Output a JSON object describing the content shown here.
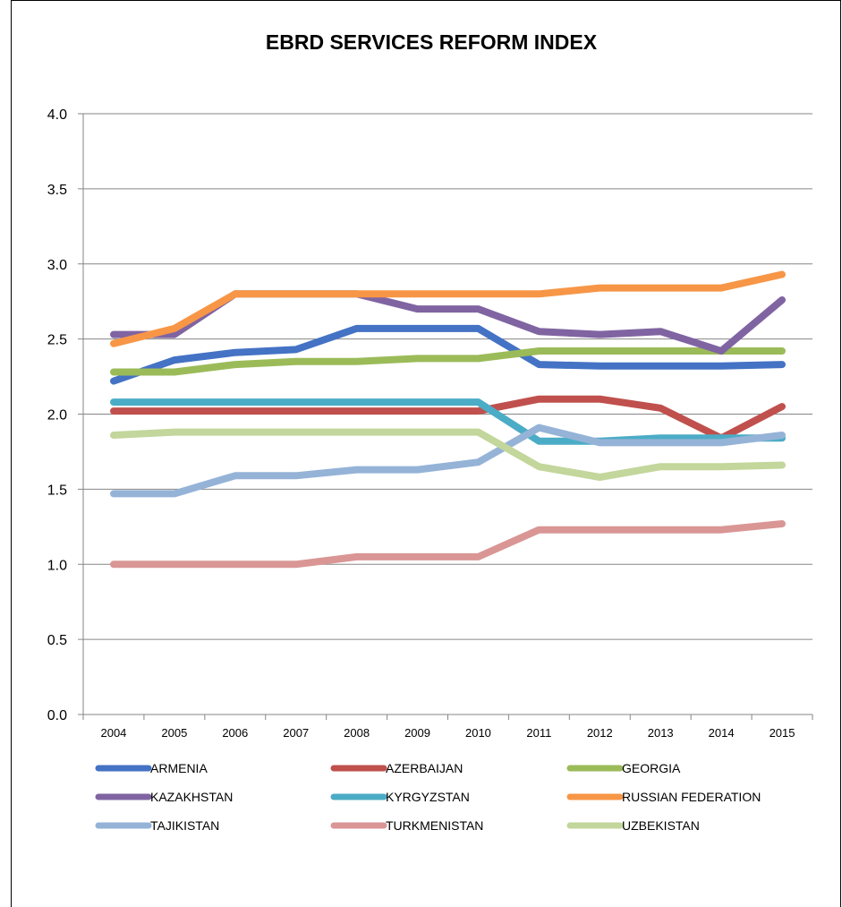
{
  "chart_data": {
    "type": "line",
    "title": "EBRD SERVICES REFORM INDEX",
    "xlabel": "",
    "ylabel": "",
    "ylim": [
      0,
      4
    ],
    "yticks": [
      "0.0",
      "0.5",
      "1.0",
      "1.5",
      "2.0",
      "2.5",
      "3.0",
      "3.5",
      "4.0"
    ],
    "x": [
      "2004",
      "2005",
      "2006",
      "2007",
      "2008",
      "2009",
      "2010",
      "2011",
      "2012",
      "2013",
      "2014",
      "2015"
    ],
    "grid": true,
    "legend_position": "bottom",
    "series": [
      {
        "name": "ARMENIA",
        "color": "#4472C4",
        "values": [
          2.22,
          2.36,
          2.41,
          2.43,
          2.57,
          2.57,
          2.57,
          2.33,
          2.32,
          2.32,
          2.32,
          2.33
        ]
      },
      {
        "name": "AZERBAIJAN",
        "color": "#C0504D",
        "values": [
          2.02,
          2.02,
          2.02,
          2.02,
          2.02,
          2.02,
          2.02,
          2.1,
          2.1,
          2.04,
          1.84,
          2.05
        ]
      },
      {
        "name": "GEORGIA",
        "color": "#9BBB59",
        "values": [
          2.28,
          2.28,
          2.33,
          2.35,
          2.35,
          2.37,
          2.37,
          2.42,
          2.42,
          2.42,
          2.42,
          2.42
        ]
      },
      {
        "name": "KAZAKHSTAN",
        "color": "#8064A2",
        "values": [
          2.53,
          2.53,
          2.8,
          2.8,
          2.8,
          2.7,
          2.7,
          2.55,
          2.53,
          2.55,
          2.42,
          2.76
        ]
      },
      {
        "name": "KYRGYZSTAN",
        "color": "#4BACC6",
        "values": [
          2.08,
          2.08,
          2.08,
          2.08,
          2.08,
          2.08,
          2.08,
          1.82,
          1.82,
          1.84,
          1.84,
          1.84
        ]
      },
      {
        "name": "RUSSIAN FEDERATION",
        "color": "#F79646",
        "values": [
          2.47,
          2.57,
          2.8,
          2.8,
          2.8,
          2.8,
          2.8,
          2.8,
          2.84,
          2.84,
          2.84,
          2.93
        ]
      },
      {
        "name": "TAJIKISTAN",
        "color": "#95B3D7",
        "values": [
          1.47,
          1.47,
          1.59,
          1.59,
          1.63,
          1.63,
          1.68,
          1.91,
          1.81,
          1.81,
          1.81,
          1.86
        ]
      },
      {
        "name": "TURKMENISTAN",
        "color": "#D99694",
        "values": [
          1.0,
          1.0,
          1.0,
          1.0,
          1.05,
          1.05,
          1.05,
          1.23,
          1.23,
          1.23,
          1.23,
          1.27
        ]
      },
      {
        "name": "UZBEKISTAN",
        "color": "#C3D69B",
        "values": [
          1.86,
          1.88,
          1.88,
          1.88,
          1.88,
          1.88,
          1.88,
          1.65,
          1.58,
          1.65,
          1.65,
          1.66
        ]
      }
    ]
  }
}
